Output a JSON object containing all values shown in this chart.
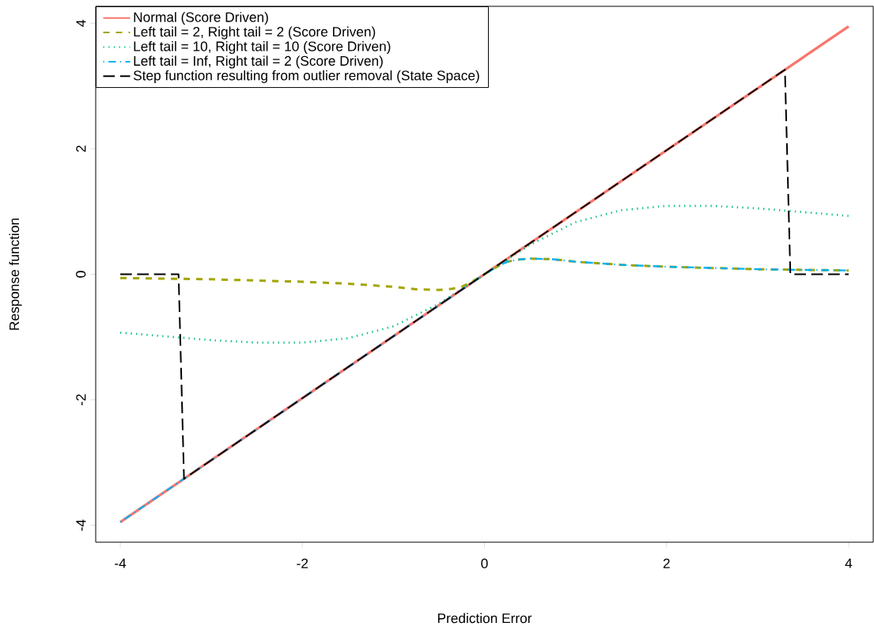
{
  "chart_data": {
    "type": "line",
    "xlabel": "Prediction Error",
    "ylabel": "Response function",
    "legend": "top left",
    "grid": false,
    "marker": "none",
    "xlim": [
      -4.27,
      4.27
    ],
    "ylim": [
      -4.27,
      4.27
    ],
    "xticks": [
      -4,
      -2,
      0,
      2,
      4
    ],
    "yticks": [
      -4,
      -2,
      0,
      2,
      4
    ],
    "series": [
      {
        "name": "Normal (Score Driven)",
        "color": "#f8766d",
        "line_style": "solid",
        "x": [
          -4,
          4
        ],
        "values": [
          -3.95,
          3.95
        ]
      },
      {
        "name": "Left tail = 2, Right tail = 2 (Score Driven)",
        "color": "#a3a500",
        "line_style": "dashed",
        "x": [
          -4,
          -3,
          -2,
          -1.5,
          -1,
          -0.75,
          -0.5,
          -0.35,
          -0.25,
          -0.15,
          0,
          0.15,
          0.25,
          0.35,
          0.5,
          0.75,
          1,
          1.5,
          2,
          3,
          4
        ],
        "values": [
          -0.06,
          -0.08,
          -0.12,
          -0.15,
          -0.2,
          -0.24,
          -0.25,
          -0.23,
          -0.2,
          -0.13,
          0,
          0.13,
          0.2,
          0.23,
          0.25,
          0.24,
          0.2,
          0.15,
          0.12,
          0.08,
          0.06
        ]
      },
      {
        "name": "Left tail = 10, Right tail = 10 (Score Driven)",
        "color": "#00bf7d",
        "line_style": "dotted",
        "x": [
          -4,
          -3.5,
          -3,
          -2.5,
          -2,
          -1.5,
          -1,
          -0.5,
          0,
          0.5,
          1,
          1.5,
          2,
          2.5,
          3,
          3.5,
          4
        ],
        "values": [
          -0.93,
          -0.99,
          -1.05,
          -1.09,
          -1.09,
          -1.02,
          -0.83,
          -0.47,
          0,
          0.47,
          0.83,
          1.02,
          1.09,
          1.09,
          1.05,
          0.99,
          0.93
        ]
      },
      {
        "name": "Left tail = Inf, Right tail = 2 (Score Driven)",
        "color": "#00b0f6",
        "line_style": "dashdot",
        "x": [
          -4,
          0,
          0.15,
          0.25,
          0.35,
          0.5,
          0.75,
          1,
          1.5,
          2,
          3,
          4
        ],
        "values": [
          -3.95,
          0,
          0.13,
          0.2,
          0.23,
          0.25,
          0.24,
          0.2,
          0.15,
          0.12,
          0.08,
          0.06
        ]
      },
      {
        "name": "Step function resulting from outlier removal (State Space)",
        "color": "#000000",
        "line_style": "longdash",
        "x": [
          -4,
          -3.36,
          -3.3,
          3.3,
          3.36,
          4
        ],
        "values": [
          0,
          0,
          -3.26,
          3.26,
          0,
          0
        ]
      }
    ]
  }
}
